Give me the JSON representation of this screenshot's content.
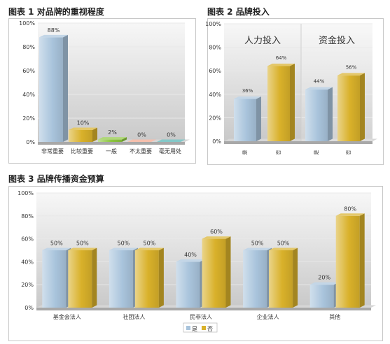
{
  "headings": {
    "chart1": "图表 1 对品牌的重视程度",
    "chart2": "图表 2 品牌投入",
    "chart3": "图表 3 品牌传播资金预算"
  },
  "colors": {
    "blue": "#a9c4dc",
    "gold": "#d9b12a",
    "green": "#8cc63e",
    "salmon": "#f0a48a",
    "teal": "#4fb0b0"
  },
  "chart_data": [
    {
      "type": "bar",
      "title": "图表 1 对品牌的重视程度",
      "categories": [
        "非常重要",
        "比较重要",
        "一般",
        "不太重要",
        "毫无用处"
      ],
      "values": [
        88,
        10,
        2,
        0,
        0
      ],
      "value_labels": [
        "88%",
        "10%",
        "2%",
        "0%",
        "0%"
      ],
      "bar_colors": [
        "blue",
        "gold",
        "green",
        "salmon",
        "teal"
      ],
      "ylim": [
        0,
        100
      ],
      "yticks": [
        "0%",
        "20%",
        "40%",
        "60%",
        "80%",
        "100%"
      ],
      "grid": true
    },
    {
      "type": "bar",
      "title": "图表 2 品牌投入",
      "groups": [
        "人力投入",
        "资金投入"
      ],
      "categories": [
        "是",
        "否",
        "是",
        "否"
      ],
      "values": [
        36,
        64,
        44,
        56
      ],
      "value_labels": [
        "36%",
        "64%",
        "44%",
        "56%"
      ],
      "bar_colors": [
        "blue",
        "gold",
        "blue",
        "gold"
      ],
      "ylim": [
        0,
        100
      ],
      "yticks": [
        "0%",
        "20%",
        "40%",
        "60%",
        "80%",
        "100%"
      ],
      "grid": true
    },
    {
      "type": "bar",
      "title": "图表 3 品牌传播资金预算",
      "categories": [
        "基金会法人",
        "社团法人",
        "民非法人",
        "企业法人",
        "其他"
      ],
      "series": [
        {
          "name": "是",
          "color": "blue",
          "values": [
            50,
            50,
            40,
            50,
            20
          ],
          "labels": [
            "50%",
            "50%",
            "40%",
            "50%",
            "20%"
          ]
        },
        {
          "name": "否",
          "color": "gold",
          "values": [
            50,
            50,
            60,
            50,
            80
          ],
          "labels": [
            "50%",
            "50%",
            "60%",
            "50%",
            "80%"
          ]
        }
      ],
      "ylim": [
        0,
        100
      ],
      "yticks": [
        "0%",
        "20%",
        "40%",
        "60%",
        "80%",
        "100%"
      ],
      "legend": "bottom",
      "grid": true
    }
  ]
}
